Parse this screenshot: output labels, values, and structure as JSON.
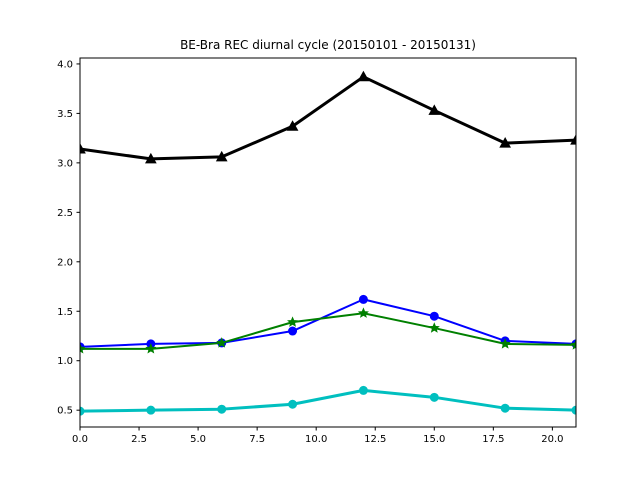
{
  "chart_data": {
    "type": "line",
    "title": "BE-Bra REC diurnal cycle (20150101 - 20150131)",
    "xlabel": "",
    "ylabel": "",
    "xlim": [
      0,
      21
    ],
    "ylim": [
      0.33,
      4.06
    ],
    "x_ticks": [
      0.0,
      2.5,
      5.0,
      7.5,
      10.0,
      12.5,
      15.0,
      17.5,
      20.0
    ],
    "x_tick_labels": [
      "0.0",
      "2.5",
      "5.0",
      "7.5",
      "10.0",
      "12.5",
      "15.0",
      "17.5",
      "20.0"
    ],
    "y_ticks": [
      0.5,
      1.0,
      1.5,
      2.0,
      2.5,
      3.0,
      3.5,
      4.0
    ],
    "y_tick_labels": [
      "0.5",
      "1.0",
      "1.5",
      "2.0",
      "2.5",
      "3.0",
      "3.5",
      "4.0"
    ],
    "grid": false,
    "x": [
      0,
      3,
      6,
      9,
      12,
      15,
      18,
      21
    ],
    "series": [
      {
        "color": "#000000",
        "marker": "triangle",
        "linewidth": 3,
        "values": [
          3.14,
          3.04,
          3.06,
          3.37,
          3.87,
          3.53,
          3.2,
          3.23
        ]
      },
      {
        "color": "#0000ff",
        "marker": "circle",
        "linewidth": 2,
        "values": [
          1.14,
          1.17,
          1.18,
          1.3,
          1.62,
          1.45,
          1.2,
          1.17
        ]
      },
      {
        "color": "#008000",
        "marker": "star",
        "linewidth": 2,
        "values": [
          1.12,
          1.12,
          1.18,
          1.39,
          1.48,
          1.33,
          1.17,
          1.16
        ]
      },
      {
        "color": "#00bfbf",
        "marker": "circle",
        "linewidth": 3,
        "values": [
          0.49,
          0.5,
          0.51,
          0.56,
          0.7,
          0.63,
          0.52,
          0.5
        ]
      }
    ]
  }
}
